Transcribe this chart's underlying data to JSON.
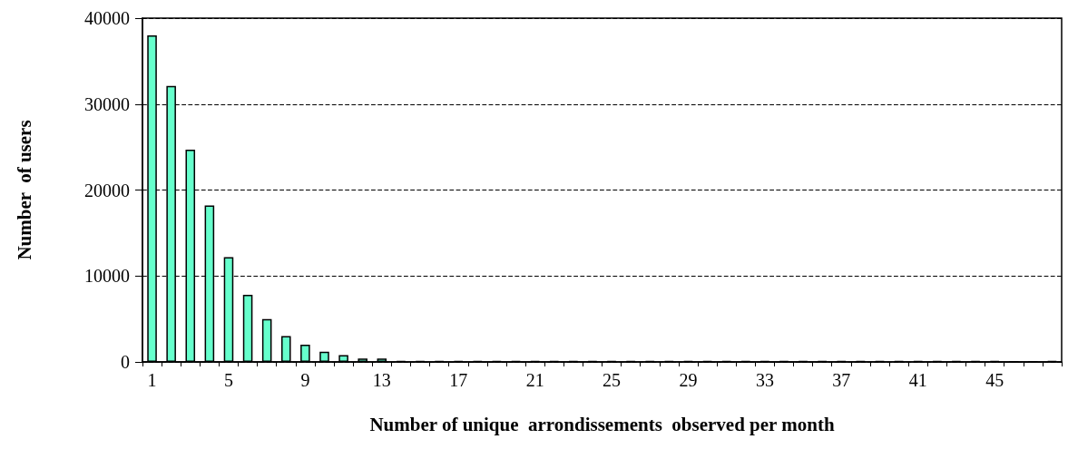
{
  "chart_data": {
    "type": "bar",
    "xlabel": "Number of unique  arrondissements  observed per month",
    "ylabel": "Number  of users",
    "categories": [
      "1",
      null,
      null,
      null,
      "5",
      null,
      null,
      null,
      "9",
      null,
      null,
      null,
      "13",
      null,
      null,
      null,
      "17",
      null,
      null,
      null,
      "21",
      null,
      null,
      null,
      "25",
      null,
      null,
      null,
      "29",
      null,
      null,
      null,
      "33",
      null,
      null,
      null,
      "37",
      null,
      null,
      null,
      "41",
      null,
      null,
      null,
      "45",
      null,
      null,
      null
    ],
    "values": [
      38000,
      32100,
      24700,
      18200,
      12200,
      7800,
      5000,
      3000,
      2000,
      1200,
      800,
      400,
      400,
      100,
      100,
      100,
      100,
      100,
      100,
      100,
      100,
      100,
      100,
      100,
      100,
      100,
      100,
      100,
      100,
      100,
      100,
      100,
      100,
      100,
      100,
      100,
      100,
      100,
      100,
      100,
      100,
      100,
      100,
      100,
      100,
      0,
      0,
      100
    ],
    "color": "#66ffcc",
    "ylim": [
      0,
      40000
    ],
    "yticks": [
      0,
      10000,
      20000,
      30000,
      40000
    ],
    "grid": "y",
    "line_style": "dashed"
  }
}
